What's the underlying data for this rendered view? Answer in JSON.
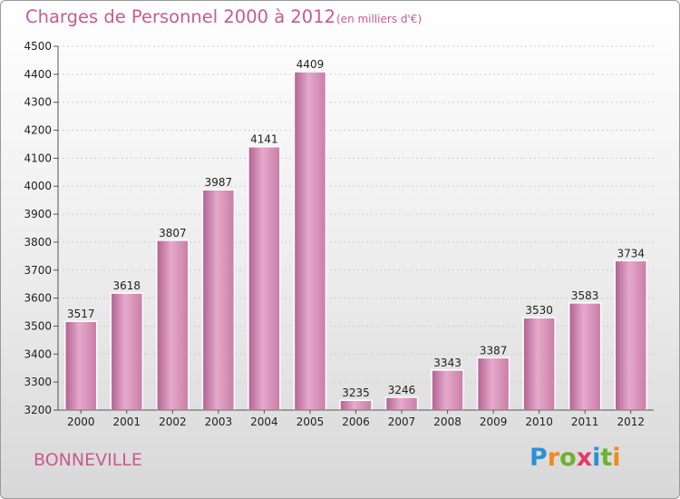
{
  "header": {
    "title": "Charges de Personnel 2000 à 2012",
    "subtitle": "(en milliers d'€)"
  },
  "footer": {
    "city": "BONNEVILLE"
  },
  "logo": {
    "letters": [
      "P",
      "r",
      "o",
      "x",
      "i",
      "t",
      "i"
    ],
    "colors": [
      "#2f8fd8",
      "#f08a1c",
      "#6cb32e",
      "#e23a6c",
      "#2f8fd8",
      "#6cb32e",
      "#f08a1c"
    ]
  },
  "colors": {
    "bar": "#c97da6",
    "bar_light": "#e6a9cb",
    "bar_dark": "#b06190"
  },
  "chart_data": {
    "type": "bar",
    "categories": [
      "2000",
      "2001",
      "2002",
      "2003",
      "2004",
      "2005",
      "2006",
      "2007",
      "2008",
      "2009",
      "2010",
      "2011",
      "2012"
    ],
    "values": [
      3517,
      3618,
      3807,
      3987,
      4141,
      4409,
      3235,
      3246,
      3343,
      3387,
      3530,
      3583,
      3734
    ],
    "ylim": [
      3200,
      4500
    ],
    "yticks": [
      3200,
      3300,
      3400,
      3500,
      3600,
      3700,
      3800,
      3900,
      4000,
      4100,
      4200,
      4300,
      4400,
      4500
    ],
    "grid": true
  }
}
